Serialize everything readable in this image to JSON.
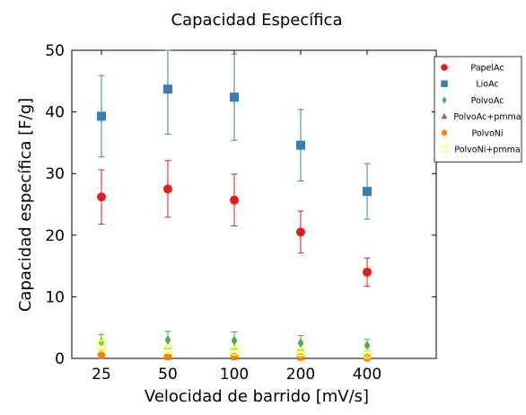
{
  "chart_data": {
    "type": "scatter",
    "title": "Capacidad Específica",
    "xlabel": "Velocidad de barrido [mV/s]",
    "ylabel": "Capacidad específica [F/g]",
    "categories": [
      "25",
      "50",
      "100",
      "200",
      "400"
    ],
    "ylim": [
      0,
      50
    ],
    "yticks": [
      "0",
      "10",
      "20",
      "30",
      "40",
      "50"
    ],
    "grid": false,
    "legend_position": "top-right",
    "series": [
      {
        "name": "PapelAc",
        "color": "#e41a1c",
        "marker": "circle",
        "values": [
          26.2,
          27.5,
          25.7,
          20.5,
          14.0
        ],
        "errors": [
          4.4,
          4.6,
          4.2,
          3.4,
          2.3
        ]
      },
      {
        "name": "LioAc",
        "color": "#377eb8",
        "marker": "square",
        "values": [
          39.3,
          43.7,
          42.4,
          34.6,
          27.1
        ],
        "errors": [
          6.6,
          7.3,
          7.0,
          5.8,
          4.5
        ]
      },
      {
        "name": "PolvoAc",
        "color": "#4daf4a",
        "marker": "diamond",
        "values": [
          2.6,
          3.0,
          2.9,
          2.5,
          2.1
        ],
        "errors": [
          1.3,
          1.4,
          1.4,
          1.2,
          1.0
        ]
      },
      {
        "name": "PolvoAc+pmma",
        "color": "#984ea3",
        "marker": "triangle",
        "values": [
          0.4,
          0.4,
          0.4,
          0.3,
          0.3
        ],
        "errors": [
          0.2,
          0.2,
          0.2,
          0.2,
          0.2
        ]
      },
      {
        "name": "PolvoNi",
        "color": "#ff7f00",
        "marker": "pentagon",
        "values": [
          0.5,
          0.3,
          0.3,
          0.2,
          0.1
        ],
        "errors": [
          0.2,
          0.2,
          0.2,
          0.1,
          0.1
        ]
      },
      {
        "name": "PolvoNi+pmma",
        "color": "#ffff33",
        "marker": "open-circle",
        "values": [
          2.1,
          1.5,
          1.2,
          1.0,
          0.7
        ],
        "errors": [
          0.9,
          0.7,
          0.6,
          0.5,
          0.4
        ]
      }
    ]
  }
}
